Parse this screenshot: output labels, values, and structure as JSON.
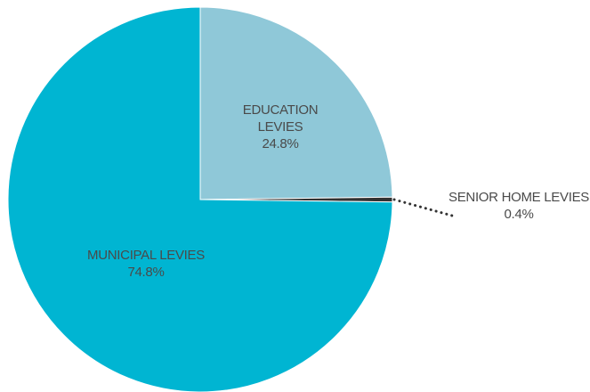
{
  "chart_data": {
    "type": "pie",
    "slices": [
      {
        "label_lines": [
          "EDUCATION",
          "LEVIES"
        ],
        "value": 24.8,
        "value_label": "24.8%",
        "color": "#8fc8d8"
      },
      {
        "label_lines": [
          "SENIOR HOME LEVIES"
        ],
        "value": 0.4,
        "value_label": "0.4%",
        "color": "#333333"
      },
      {
        "label_lines": [
          "MUNICIPAL LEVIES"
        ],
        "value": 74.8,
        "value_label": "74.8%",
        "color": "#00b5d2"
      }
    ],
    "legend": "none",
    "callout_style": "dotted leader line for the small slice"
  }
}
